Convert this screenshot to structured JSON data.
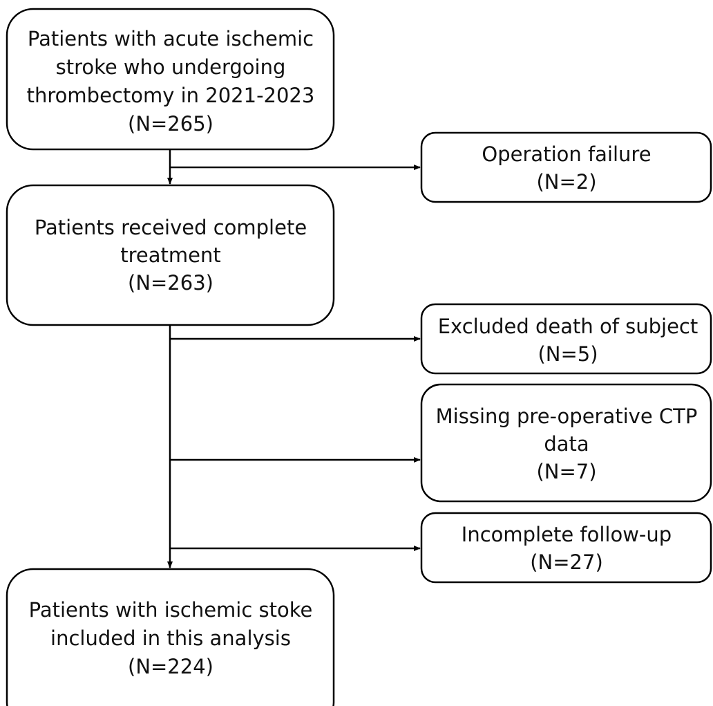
{
  "nodes": [
    {
      "lines": [
        "Patients with acute ischemic",
        "stroke who undergoing",
        "thrombectomy in 2021-2023",
        "(N=265)"
      ]
    },
    {
      "lines": [
        "Operation failure",
        "(N=2)"
      ]
    },
    {
      "lines": [
        "Patients received complete",
        "treatment",
        "(N=263)"
      ]
    },
    {
      "lines": [
        "Excluded death of subject",
        "(N=5)"
      ]
    },
    {
      "lines": [
        "Missing pre-operative CTP",
        "data",
        "(N=7)"
      ]
    },
    {
      "lines": [
        "Incomplete follow-up",
        "(N=27)"
      ]
    },
    {
      "lines": [
        "Patients with ischemic stoke",
        "included in this analysis",
        "(N=224)"
      ]
    }
  ]
}
